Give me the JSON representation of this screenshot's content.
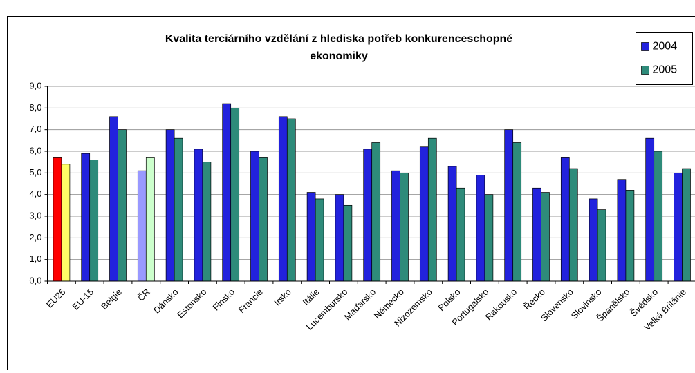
{
  "chart_data": {
    "type": "bar",
    "title": [
      "Kvalita terciárního vzdělání z hlediska potřeb konkurenceschopné",
      "ekonomiky"
    ],
    "categories": [
      "EU25",
      "EU-15",
      "Belgie",
      "ČR",
      "Dánsko",
      "Estonsko",
      "Finsko",
      "Francie",
      "Irsko",
      "Itálie",
      "Lucembursko",
      "Maďarsko",
      "Německo",
      "Nizozemsko",
      "Polsko",
      "Portugalsko",
      "Rakousko",
      "Řecko",
      "Slovensko",
      "Slovinsko",
      "Španělsko",
      "Švédsko",
      "Velká Británie"
    ],
    "series": [
      {
        "name": "2004",
        "color": "#2222dd",
        "colors": [
          "#ff0000",
          "#2222dd",
          "#2222dd",
          "#9999ff",
          "#2222dd",
          "#2222dd",
          "#2222dd",
          "#2222dd",
          "#2222dd",
          "#2222dd",
          "#2222dd",
          "#2222dd",
          "#2222dd",
          "#2222dd",
          "#2222dd",
          "#2222dd",
          "#2222dd",
          "#2222dd",
          "#2222dd",
          "#2222dd",
          "#2222dd",
          "#2222dd",
          "#2222dd"
        ],
        "values": [
          5.7,
          5.9,
          7.6,
          5.1,
          7.0,
          6.1,
          8.2,
          6.0,
          7.6,
          4.1,
          4.0,
          6.1,
          5.1,
          6.2,
          5.3,
          4.9,
          7.0,
          4.3,
          5.7,
          3.8,
          4.7,
          6.6,
          5.0
        ]
      },
      {
        "name": "2005",
        "color": "#2e8b7a",
        "colors": [
          "#ffff66",
          "#2e8b7a",
          "#2e8b7a",
          "#ccffcc",
          "#2e8b7a",
          "#2e8b7a",
          "#2e8b7a",
          "#2e8b7a",
          "#2e8b7a",
          "#2e8b7a",
          "#2e8b7a",
          "#2e8b7a",
          "#2e8b7a",
          "#2e8b7a",
          "#2e8b7a",
          "#2e8b7a",
          "#2e8b7a",
          "#2e8b7a",
          "#2e8b7a",
          "#2e8b7a",
          "#2e8b7a",
          "#2e8b7a",
          "#2e8b7a"
        ],
        "values": [
          5.4,
          5.6,
          7.0,
          5.7,
          6.6,
          5.5,
          8.0,
          5.7,
          7.5,
          3.8,
          3.5,
          6.4,
          5.0,
          6.6,
          4.3,
          4.0,
          6.4,
          4.1,
          5.2,
          3.3,
          4.2,
          6.0,
          5.2
        ]
      }
    ],
    "ylim": [
      0,
      9
    ],
    "yticks": [
      {
        "value": 0,
        "label": "0,0"
      },
      {
        "value": 1,
        "label": "1,0"
      },
      {
        "value": 2,
        "label": "2,0"
      },
      {
        "value": 3,
        "label": "3,0"
      },
      {
        "value": 4,
        "label": "4,0"
      },
      {
        "value": 5,
        "label": "5,0"
      },
      {
        "value": 6,
        "label": "6,0"
      },
      {
        "value": 7,
        "label": "7,0"
      },
      {
        "value": 8,
        "label": "8,0"
      },
      {
        "value": 9,
        "label": "9,0"
      }
    ],
    "grid": true,
    "legend": "top-right"
  }
}
